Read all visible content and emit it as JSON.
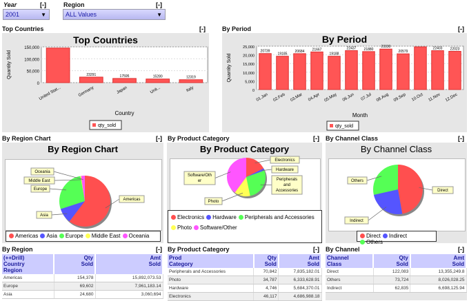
{
  "filters": {
    "year": {
      "label": "Year",
      "value": "2001",
      "toggle": "[-]"
    },
    "region": {
      "label": "Region",
      "value": "ALL Values",
      "toggle": "[-]"
    }
  },
  "colors": {
    "bar": "#ff5555",
    "red": "#ff4f4f",
    "blue": "#5555ff",
    "green": "#55ff55",
    "yellow": "#ffff55",
    "magenta": "#ff55ff",
    "header": "#ccccff"
  },
  "sections": {
    "top_countries": {
      "title": "Top Countries",
      "toggle": "[-]"
    },
    "by_period": {
      "title": "By Period",
      "toggle": "[-]"
    },
    "region_chart": {
      "title": "By Region Chart",
      "toggle": "[-]"
    },
    "product_chart": {
      "title": "By Product Category",
      "toggle": "[-]"
    },
    "channel_chart": {
      "title": "By Channel Class",
      "toggle": "[-]"
    },
    "region_table": {
      "title": "By Region",
      "toggle": "[-]"
    },
    "product_table": {
      "title": "By Product Category",
      "toggle": "[-]"
    },
    "channel_table": {
      "title": "By Channel",
      "toggle": "[-]"
    }
  },
  "chart_data": [
    {
      "type": "bar",
      "title": "Top Countries",
      "xlabel": "Country",
      "ylabel": "Quantity Sold",
      "ylim": [
        0,
        150000
      ],
      "yticks": [
        "0",
        "50,000",
        "100,000",
        "150,000"
      ],
      "categories": [
        "United Stat...",
        "Germany",
        "Japan",
        "Unit...",
        "Italy"
      ],
      "series": [
        {
          "name": "qty_sold",
          "values": [
            145000,
            23291,
            17595,
            15280,
            12319
          ],
          "labels": [
            "",
            "23291",
            "17595",
            "15280",
            "12319"
          ]
        }
      ],
      "grid": true,
      "legend": "bottom"
    },
    {
      "type": "bar",
      "title": "By Period",
      "xlabel": "Month",
      "ylabel": "Quantity Sold",
      "ylim": [
        0,
        25000
      ],
      "yticks": [
        "0",
        "5,000",
        "10,000",
        "15,000",
        "20,000",
        "25,000"
      ],
      "categories": [
        "01.Jan",
        "02.Feb",
        "03.Mar",
        "04.Apr",
        "05.May",
        "06.Jun",
        "07.Jul",
        "08.Aug",
        "09.Sep",
        "10.Oct",
        "11.Nov",
        "12.Dec"
      ],
      "series": [
        {
          "name": "qty_sold",
          "values": [
            20739,
            19185,
            20684,
            21667,
            19188,
            22437,
            21880,
            23330,
            20579,
            24600,
            22403,
            22023
          ],
          "labels": [
            "20739",
            "19185",
            "20684",
            "21667",
            "19188",
            "22437",
            "21880",
            "23330",
            "20579",
            "",
            "22403",
            "22023"
          ]
        }
      ],
      "grid": true,
      "legend": "bottom"
    },
    {
      "type": "pie",
      "title": "By Region Chart",
      "slices": [
        {
          "name": "Americas",
          "value": 154378,
          "color": "#ff4f4f"
        },
        {
          "name": "Asia",
          "value": 24680,
          "color": "#5555ff"
        },
        {
          "name": "Europe",
          "value": 69602,
          "color": "#55ff55"
        },
        {
          "name": "Middle East",
          "value": 1200,
          "color": "#ffff55"
        },
        {
          "name": "Oceania",
          "value": 6000,
          "color": "#ff55ff"
        }
      ],
      "legend": "bottom"
    },
    {
      "type": "pie",
      "title": "By Product Category",
      "slices": [
        {
          "name": "Electronics",
          "value": 46117,
          "color": "#ff4f4f"
        },
        {
          "name": "Hardware",
          "value": 4746,
          "color": "#5555ff"
        },
        {
          "name": "Peripherals and Accessories",
          "value": 70842,
          "color": "#55ff55"
        },
        {
          "name": "Photo",
          "value": 34787,
          "color": "#ffff55"
        },
        {
          "name": "Software/Other",
          "value": 104000,
          "color": "#ff55ff"
        }
      ],
      "legend": "bottom"
    },
    {
      "type": "pie",
      "title": "By Channel Class",
      "slices": [
        {
          "name": "Direct",
          "value": 122083,
          "color": "#ff4f4f"
        },
        {
          "name": "Indirect",
          "value": 62835,
          "color": "#5555ff"
        },
        {
          "name": "Others",
          "value": 73724,
          "color": "#55ff55"
        }
      ],
      "legend": "bottom"
    }
  ],
  "tables": {
    "region": {
      "headers": [
        "(++Drill)\nCountry\nRegion",
        "Qty\nSold",
        "Amt\nSold"
      ],
      "rows": [
        [
          "Americas",
          "154,378",
          "15,892,073.53"
        ],
        [
          "Europe",
          "69,602",
          "7,961,183.14"
        ],
        [
          "Asia",
          "24,680",
          "3,060,694"
        ]
      ]
    },
    "product": {
      "headers": [
        "Prod\nCategory",
        "Qty\nSold",
        "Amt\nSold"
      ],
      "rows": [
        [
          "Peripherals and Accessories",
          "70,842",
          "7,835,182.01"
        ],
        [
          "Photo",
          "34,787",
          "6,333,628.91"
        ],
        [
          "Hardware",
          "4,746",
          "5,684,370.01"
        ],
        [
          "Electronics",
          "46,117",
          "4,686,988.18"
        ]
      ]
    },
    "channel": {
      "headers": [
        "Channel\nClass",
        "Qty\nSold",
        "Amt\nSold"
      ],
      "rows": [
        [
          "Direct",
          "122,083",
          "13,355,249.8"
        ],
        [
          "Others",
          "73,724",
          "8,026,028.25"
        ],
        [
          "Indirect",
          "62,835",
          "6,698,125.94"
        ]
      ]
    }
  }
}
